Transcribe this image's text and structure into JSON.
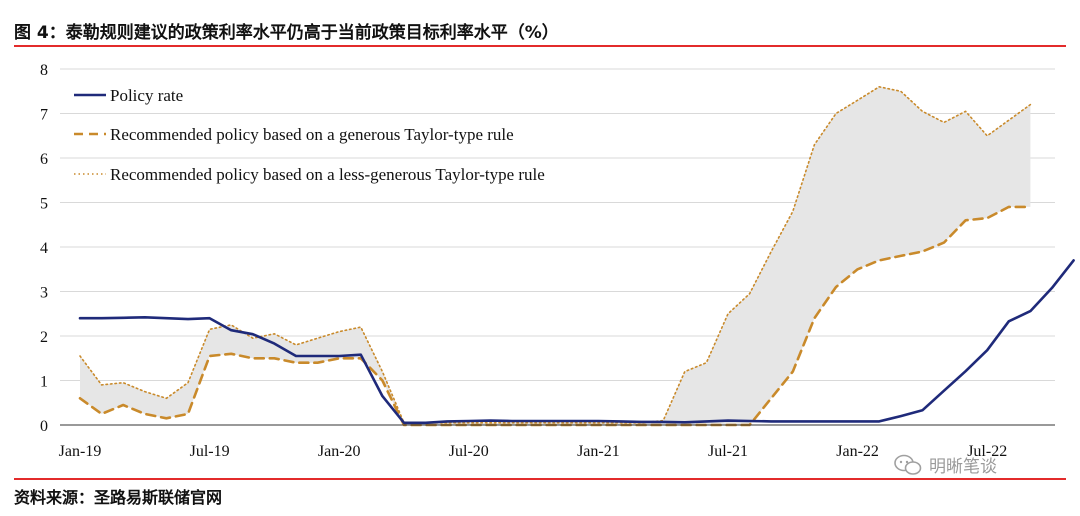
{
  "figure": {
    "title": "图 4：泰勒规则建议的政策利率水平仍高于当前政策目标利率水平（%）",
    "source": "资料来源：圣路易斯联储官网",
    "watermark": "明晰笔谈",
    "watermark_icon": "wechat-icon"
  },
  "colors": {
    "policy": "#1f2a7a",
    "generous": "#c98a2b",
    "less_generous": "#c98a2b",
    "band_fill": "#e6e6e6",
    "rule": "#e32b2b",
    "grid": "#d9d9d9"
  },
  "chart_data": {
    "type": "line",
    "title": "",
    "xlabel": "",
    "ylabel": "",
    "ylim": [
      0,
      8
    ],
    "yticks": [
      "0",
      "1",
      "2",
      "3",
      "4",
      "5",
      "6",
      "7",
      "8"
    ],
    "xticks": [
      "Jan-19",
      "Jul-19",
      "Jan-20",
      "Jul-20",
      "Jan-21",
      "Jul-21",
      "Jan-22",
      "Jul-22"
    ],
    "grid": true,
    "legend_position": "top-left",
    "band_between": [
      "Recommended policy based on a generous Taylor-type rule",
      "Recommended policy based on a less-generous Taylor-type rule"
    ],
    "series": [
      {
        "name": "Policy rate",
        "style": "solid",
        "x": [
          "2019-01",
          "2019-02",
          "2019-03",
          "2019-04",
          "2019-05",
          "2019-06",
          "2019-07",
          "2019-08",
          "2019-09",
          "2019-10",
          "2019-11",
          "2019-12",
          "2020-01",
          "2020-02",
          "2020-03",
          "2020-04",
          "2020-05",
          "2020-06",
          "2020-07",
          "2020-08",
          "2020-09",
          "2020-10",
          "2020-11",
          "2020-12",
          "2021-01",
          "2021-02",
          "2021-03",
          "2021-04",
          "2021-05",
          "2021-06",
          "2021-07",
          "2021-08",
          "2021-09",
          "2021-10",
          "2021-11",
          "2021-12",
          "2022-01",
          "2022-02",
          "2022-03",
          "2022-04",
          "2022-05",
          "2022-06",
          "2022-07",
          "2022-08",
          "2022-09",
          "2022-10",
          "2022-11"
        ],
        "values": [
          2.4,
          2.4,
          2.41,
          2.42,
          2.4,
          2.38,
          2.4,
          2.13,
          2.04,
          1.83,
          1.55,
          1.55,
          1.55,
          1.58,
          0.65,
          0.05,
          0.05,
          0.08,
          0.09,
          0.1,
          0.09,
          0.09,
          0.09,
          0.09,
          0.09,
          0.08,
          0.07,
          0.07,
          0.06,
          0.08,
          0.1,
          0.09,
          0.08,
          0.08,
          0.08,
          0.08,
          0.08,
          0.08,
          0.2,
          0.33,
          0.77,
          1.21,
          1.68,
          2.33,
          2.56,
          3.08,
          3.7
        ]
      },
      {
        "name": "Recommended policy based on a generous Taylor-type rule",
        "style": "dashed",
        "x": [
          "2019-01",
          "2019-02",
          "2019-03",
          "2019-04",
          "2019-05",
          "2019-06",
          "2019-07",
          "2019-08",
          "2019-09",
          "2019-10",
          "2019-11",
          "2019-12",
          "2020-01",
          "2020-02",
          "2020-03",
          "2020-04",
          "2020-05",
          "2020-06",
          "2020-07",
          "2020-08",
          "2020-09",
          "2020-10",
          "2020-11",
          "2020-12",
          "2021-01",
          "2021-02",
          "2021-03",
          "2021-04",
          "2021-05",
          "2021-06",
          "2021-07",
          "2021-08",
          "2021-09",
          "2021-10",
          "2021-11",
          "2021-12",
          "2022-01",
          "2022-02",
          "2022-03",
          "2022-04",
          "2022-05",
          "2022-06",
          "2022-07",
          "2022-08",
          "2022-09"
        ],
        "values": [
          0.6,
          0.25,
          0.45,
          0.25,
          0.15,
          0.25,
          1.55,
          1.6,
          1.5,
          1.5,
          1.4,
          1.4,
          1.5,
          1.5,
          1.0,
          0.0,
          0.0,
          0.0,
          0.0,
          0.0,
          0.0,
          0.0,
          0.0,
          0.0,
          0.0,
          0.0,
          0.0,
          0.0,
          0.0,
          0.0,
          0.0,
          0.0,
          0.6,
          1.2,
          2.4,
          3.1,
          3.5,
          3.7,
          3.8,
          3.9,
          4.1,
          4.6,
          4.65,
          4.9,
          4.9
        ]
      },
      {
        "name": "Recommended policy based on a less-generous Taylor-type rule",
        "style": "dotted",
        "x": [
          "2019-01",
          "2019-02",
          "2019-03",
          "2019-04",
          "2019-05",
          "2019-06",
          "2019-07",
          "2019-08",
          "2019-09",
          "2019-10",
          "2019-11",
          "2019-12",
          "2020-01",
          "2020-02",
          "2020-03",
          "2020-04",
          "2020-05",
          "2020-06",
          "2020-07",
          "2020-08",
          "2020-09",
          "2020-10",
          "2020-11",
          "2020-12",
          "2021-01",
          "2021-02",
          "2021-03",
          "2021-04",
          "2021-05",
          "2021-06",
          "2021-07",
          "2021-08",
          "2021-09",
          "2021-10",
          "2021-11",
          "2021-12",
          "2022-01",
          "2022-02",
          "2022-03",
          "2022-04",
          "2022-05",
          "2022-06",
          "2022-07",
          "2022-08",
          "2022-09"
        ],
        "values": [
          1.55,
          0.9,
          0.95,
          0.75,
          0.6,
          0.95,
          2.15,
          2.25,
          1.95,
          2.05,
          1.8,
          1.95,
          2.1,
          2.2,
          1.2,
          0.05,
          0.05,
          0.05,
          0.05,
          0.05,
          0.05,
          0.05,
          0.05,
          0.05,
          0.05,
          0.05,
          0.05,
          0.1,
          1.2,
          1.4,
          2.5,
          2.95,
          3.9,
          4.8,
          6.3,
          7.0,
          7.3,
          7.6,
          7.5,
          7.05,
          6.8,
          7.05,
          6.5,
          6.85,
          7.2
        ]
      }
    ]
  }
}
